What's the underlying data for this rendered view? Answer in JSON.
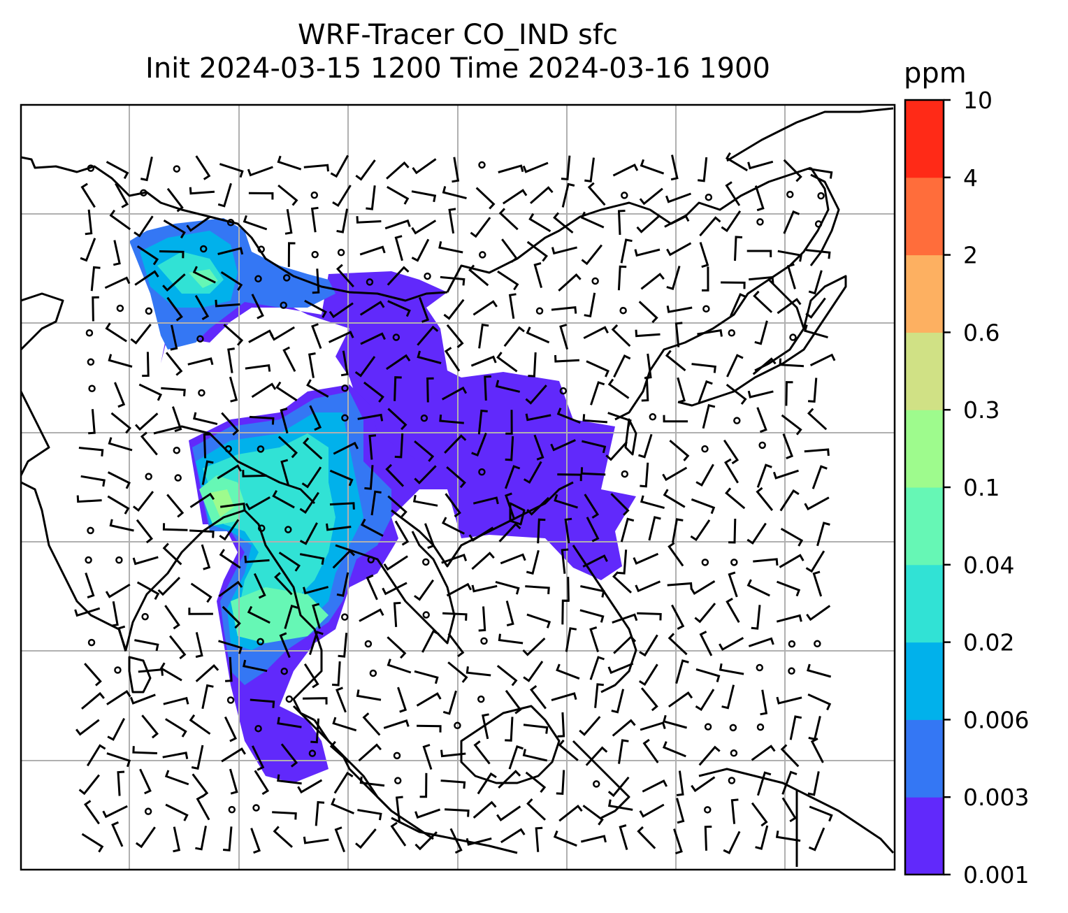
{
  "title": {
    "line1": "WRF-Tracer CO_IND sfc",
    "line2": "Init 2024-03-15 1200 Time 2024-03-16 1900"
  },
  "colorbar": {
    "unit": "ppm",
    "levels": [
      "0.001",
      "0.003",
      "0.006",
      "0.02",
      "0.04",
      "0.1",
      "0.3",
      "0.6",
      "2",
      "4",
      "10"
    ],
    "colors": [
      "#6129fb",
      "#3477f4",
      "#01b1eb",
      "#31e2d5",
      "#66f7b5",
      "#9efb8d",
      "#d0e185",
      "#fdb061",
      "#ff6d3b",
      "#ff2a17"
    ]
  },
  "map": {
    "coastline_color": "#000000",
    "gridline_color": "#b0b0b0",
    "barb_color": "#000000"
  }
}
